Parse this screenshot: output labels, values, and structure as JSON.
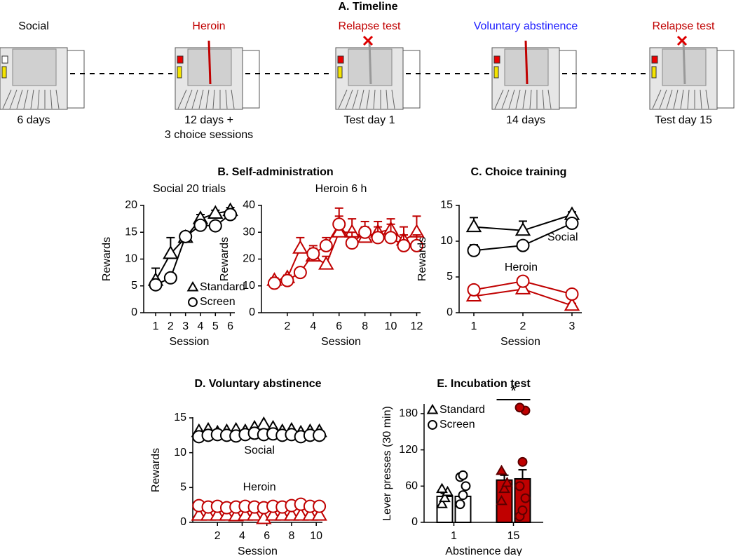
{
  "timeline": {
    "title": "A. Timeline",
    "stages": [
      {
        "label": "Social",
        "color": "#000000",
        "caption": [
          "6 days"
        ]
      },
      {
        "label": "Heroin",
        "color": "#c00000",
        "caption": [
          "12 days +",
          "3 choice sessions"
        ]
      },
      {
        "label": "Relapse test",
        "color": "#c00000",
        "caption": [
          "Test day 1"
        ]
      },
      {
        "label": "Voluntary abstinence",
        "color": "#1a1aff",
        "caption": [
          "14 days"
        ]
      },
      {
        "label": "Relapse test",
        "color": "#c00000",
        "caption": [
          "Test day 15"
        ]
      }
    ]
  },
  "chart_data": [
    {
      "type": "line",
      "title": "B. Self-administration",
      "subtitle": "Social 20 trials",
      "x": [
        1,
        2,
        3,
        4,
        5,
        6
      ],
      "xlim": [
        0.2,
        6.3
      ],
      "xticks": [
        1,
        2,
        3,
        4,
        5,
        6
      ],
      "ylim": [
        0,
        20
      ],
      "yticks": [
        0,
        5,
        10,
        15,
        20
      ],
      "xlabel": "Session",
      "ylabel": "Rewards",
      "legend": "lower right",
      "series": [
        {
          "name": "Standard",
          "marker": "triangle",
          "color": "#000000",
          "values": [
            6,
            11,
            14,
            17.5,
            18.5,
            19
          ],
          "errors": [
            2.3,
            3,
            0.8,
            0.8,
            0.6,
            0.6
          ]
        },
        {
          "name": "Screen",
          "marker": "circle",
          "color": "#000000",
          "values": [
            5.2,
            6.5,
            14.2,
            16.3,
            16.2,
            18.3
          ],
          "errors": [
            0.6,
            0.6,
            0.8,
            0.8,
            0.7,
            0.6
          ]
        }
      ]
    },
    {
      "type": "line",
      "subtitle": "Heroin 6 h",
      "x": [
        1,
        2,
        3,
        4,
        5,
        6,
        7,
        8,
        9,
        10,
        11,
        12
      ],
      "xlim": [
        0,
        12.3
      ],
      "xticks": [
        2,
        4,
        6,
        8,
        10,
        12
      ],
      "ylim": [
        0,
        40
      ],
      "yticks": [
        0,
        10,
        20,
        30,
        40
      ],
      "xlabel": "Session",
      "ylabel": "Rewards",
      "series": [
        {
          "marker": "triangle",
          "color": "#c00000",
          "values": [
            12,
            13,
            24,
            21,
            18,
            30,
            30,
            28,
            30,
            31,
            27,
            30
          ],
          "errors": [
            1,
            1,
            4,
            3,
            3,
            6,
            5,
            4,
            4,
            4,
            5,
            6
          ]
        },
        {
          "marker": "circle",
          "color": "#c00000",
          "values": [
            11,
            12,
            15,
            22,
            25,
            33,
            26,
            30,
            28,
            28,
            25,
            25
          ],
          "errors": [
            1,
            1,
            1.5,
            3,
            3,
            6,
            4,
            4,
            4,
            5,
            4,
            4
          ]
        }
      ]
    },
    {
      "type": "line",
      "title": "C. Choice training",
      "x": [
        1,
        2,
        3
      ],
      "xlim": [
        0.7,
        3.2
      ],
      "xticks": [
        1,
        2,
        3
      ],
      "ylim": [
        0,
        15
      ],
      "yticks": [
        0,
        5,
        10,
        15
      ],
      "xlabel": "Session",
      "ylabel": "Rewards",
      "annotations": [
        "Social",
        "Heroin"
      ],
      "series": [
        {
          "marker": "triangle",
          "color": "#000000",
          "values": [
            12,
            11.5,
            13.7
          ],
          "errors": [
            1.3,
            1.3,
            0.4
          ]
        },
        {
          "marker": "circle",
          "color": "#000000",
          "values": [
            8.7,
            9.4,
            12.5
          ],
          "errors": [
            0.8,
            0.6,
            0.3
          ]
        },
        {
          "marker": "triangle",
          "color": "#c00000",
          "values": [
            2.3,
            3.3,
            1
          ],
          "errors": [
            0.5,
            1,
            0.3
          ]
        },
        {
          "marker": "circle",
          "color": "#c00000",
          "values": [
            3.2,
            4.4,
            2.6
          ],
          "errors": [
            0.3,
            0.5,
            0.4
          ]
        }
      ]
    },
    {
      "type": "line",
      "title": "D. Voluntary abstinence",
      "x": [
        0.5,
        1.25,
        2,
        2.75,
        3.5,
        4.25,
        5,
        5.75,
        6.5,
        7.25,
        8,
        8.75,
        9.5,
        10.25
      ],
      "xlim": [
        0,
        10.5
      ],
      "xticks": [
        2,
        4,
        6,
        8,
        10
      ],
      "ylim": [
        0,
        15
      ],
      "yticks": [
        0,
        5,
        10,
        15
      ],
      "xlabel": "Session",
      "ylabel": "Rewards",
      "annotations": [
        "Social",
        "Heroin"
      ],
      "series": [
        {
          "marker": "triangle",
          "color": "#000000",
          "values": [
            13,
            13.2,
            12.8,
            13,
            13.2,
            13,
            13.5,
            14,
            13.5,
            13,
            13.2,
            12.8,
            13,
            13
          ]
        },
        {
          "marker": "circle",
          "color": "#000000",
          "values": [
            12.3,
            12.5,
            12.6,
            12.5,
            12.4,
            12.6,
            12.8,
            12.6,
            12.7,
            12.5,
            12.6,
            12.3,
            12.5,
            12.5
          ]
        },
        {
          "marker": "triangle",
          "color": "#c00000",
          "values": [
            1,
            1,
            1,
            1,
            0.9,
            1,
            1,
            0.5,
            1,
            1,
            1,
            1,
            1,
            1
          ]
        },
        {
          "marker": "circle",
          "color": "#c00000",
          "values": [
            2.4,
            2.2,
            2.3,
            2.1,
            2.2,
            2.3,
            2.2,
            2.1,
            2.3,
            2.2,
            2.4,
            2.6,
            2.3,
            2.3
          ]
        }
      ]
    },
    {
      "type": "bar",
      "title": "E. Incubation test",
      "categories": [
        "1",
        "15"
      ],
      "category_colors": [
        "#ffffff",
        "#c00000"
      ],
      "ylim": [
        0,
        195
      ],
      "yticks": [
        0,
        60,
        120,
        180
      ],
      "xlabel": "Abstinence  day",
      "ylabel": "Lever presses (30 min)",
      "legend": "upper left",
      "annotations": [
        "*"
      ],
      "series": [
        {
          "name": "Standard",
          "marker": "triangle",
          "values": [
            43,
            70
          ],
          "errors": [
            5,
            8
          ],
          "points": [
            [
              30,
              40,
              50,
              55
            ],
            [
              35,
              55,
              65,
              85
            ]
          ]
        },
        {
          "name": "Screen",
          "marker": "circle",
          "values": [
            43,
            72
          ],
          "errors": [
            5,
            15
          ],
          "points": [
            [
              30,
              45,
              60,
              75,
              78
            ],
            [
              10,
              20,
              40,
              60,
              100,
              185,
              190
            ]
          ]
        }
      ]
    }
  ]
}
